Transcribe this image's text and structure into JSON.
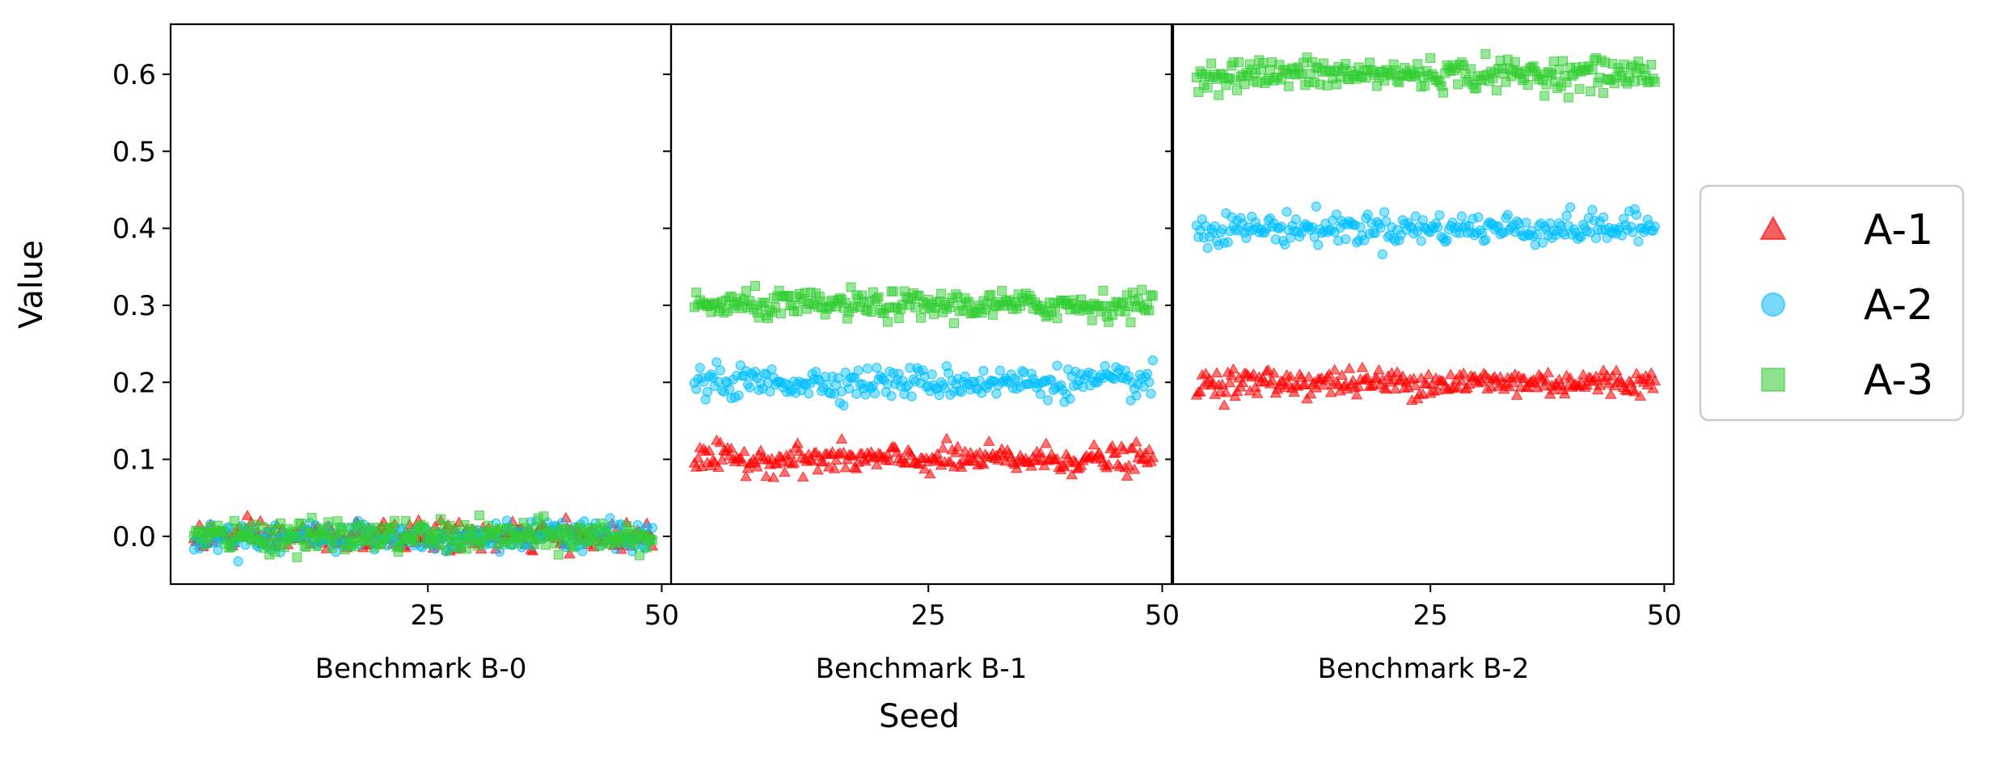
{
  "chart_data": {
    "type": "scatter",
    "ylabel": "Value",
    "xlabel": "Seed",
    "ylim": [
      -0.062,
      0.665
    ],
    "xlim": [
      -2.5,
      51
    ],
    "yticks": [
      0.0,
      0.1,
      0.2,
      0.3,
      0.4,
      0.5,
      0.6
    ],
    "ytick_labels": [
      "0.0",
      "0.1",
      "0.2",
      "0.3",
      "0.4",
      "0.5",
      "0.6"
    ],
    "xticks": [
      25,
      50
    ],
    "xtick_labels": [
      "25",
      "50"
    ],
    "points_per_series": 250,
    "x_range": [
      0,
      49
    ],
    "grid": false,
    "legend": "right",
    "series": [
      {
        "name": "A-1",
        "marker": "triangle",
        "color": "#ff0000",
        "legend_color": "#f46060"
      },
      {
        "name": "A-2",
        "marker": "circle",
        "color": "#00bfff",
        "legend_color": "#7ad8fb"
      },
      {
        "name": "A-3",
        "marker": "square",
        "color": "#32cd32",
        "legend_color": "#8ee28e"
      }
    ],
    "panels": [
      {
        "title": "Benchmark B-0",
        "means": [
          0.0,
          0.0,
          0.0
        ],
        "spread": [
          0.009,
          0.01,
          0.01
        ]
      },
      {
        "title": "Benchmark B-1",
        "means": [
          0.1,
          0.2,
          0.3
        ],
        "spread": [
          0.009,
          0.01,
          0.009
        ]
      },
      {
        "title": "Benchmark B-2",
        "means": [
          0.2,
          0.4,
          0.6
        ],
        "spread": [
          0.009,
          0.01,
          0.01
        ]
      }
    ]
  }
}
